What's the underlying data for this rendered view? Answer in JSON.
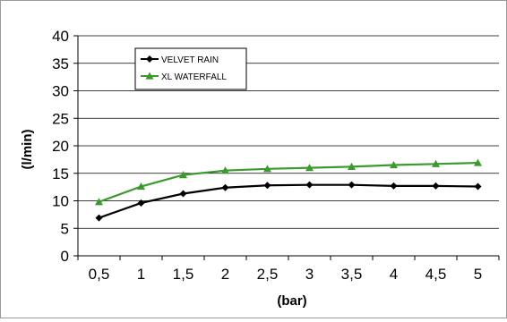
{
  "chart_data": {
    "type": "line",
    "title": "",
    "xlabel": "(bar)",
    "ylabel": "(l/min)",
    "categories": [
      "0,5",
      "1",
      "1,5",
      "2",
      "2,5",
      "3",
      "3,5",
      "4",
      "4,5",
      "5"
    ],
    "ylim": [
      0,
      40
    ],
    "yticks": [
      0,
      5,
      10,
      15,
      20,
      25,
      30,
      35,
      40
    ],
    "grid": "horizontal",
    "legend_position": "top-left",
    "series": [
      {
        "name": "VELVET RAIN",
        "color": "#000000",
        "marker": "diamond",
        "values": [
          6.9,
          9.6,
          11.3,
          12.4,
          12.8,
          12.9,
          12.9,
          12.7,
          12.7,
          12.6
        ]
      },
      {
        "name": "XL WATERFALL",
        "color": "#3a9a2e",
        "marker": "triangle",
        "values": [
          9.8,
          12.6,
          14.7,
          15.5,
          15.8,
          16.0,
          16.2,
          16.5,
          16.7,
          16.9
        ]
      }
    ]
  }
}
